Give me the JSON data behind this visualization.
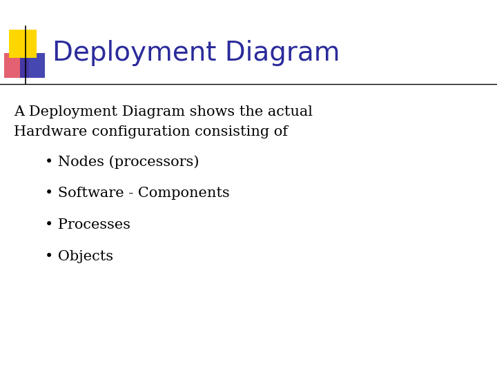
{
  "title": "Deployment Diagram",
  "title_color": "#2B2B9B",
  "title_fontsize": 28,
  "body_text_line1": "A Deployment Diagram shows the actual",
  "body_text_line2": "Hardware configuration consisting of",
  "body_fontsize": 15,
  "body_color": "#000000",
  "bullet_items": [
    "Nodes (processors)",
    "Software - Components",
    "Processes",
    "Objects"
  ],
  "bullet_fontsize": 15,
  "bullet_color": "#000000",
  "bullet_indent": 0.09,
  "bg_color": "#FFFFFF",
  "line_color": "#000000",
  "title_color_hex": "#2B2B9B",
  "yellow_color": "#FFD700",
  "red_color": "#E05060",
  "blue_color": "#3333AA"
}
